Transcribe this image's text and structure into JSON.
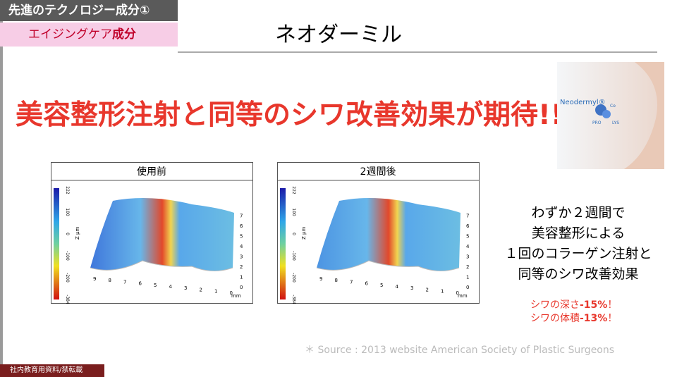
{
  "header": {
    "tag": "先進のテクノロジー成分①",
    "subtag": "エイジングケア",
    "subtag_em": "成分",
    "title": "ネオダーミル"
  },
  "headline": "美容整形注射と同等のシワ改善効果が期待!!",
  "product": {
    "brand": "Neodermyl®",
    "labels": [
      "Ce",
      "PRO",
      "LYS"
    ]
  },
  "panels": [
    {
      "title": "使用前",
      "colorbar_ticks": [
        "222",
        "100",
        "0",
        "-100",
        "-200",
        "-384"
      ],
      "z_label": "Z µm",
      "x_ticks": [
        "9",
        "8",
        "7",
        "6",
        "5",
        "4",
        "3",
        "2",
        "1",
        "0"
      ],
      "x_unit": "mm",
      "y_ticks": [
        "0",
        "1",
        "2",
        "3",
        "4",
        "5",
        "6",
        "7"
      ]
    },
    {
      "title": "2週間後",
      "colorbar_ticks": [
        "222",
        "100",
        "0",
        "-100",
        "-200",
        "-384"
      ],
      "z_label": "Z µm",
      "x_ticks": [
        "9",
        "8",
        "7",
        "6",
        "5",
        "4",
        "3",
        "2",
        "1",
        "0"
      ],
      "x_unit": "mm",
      "y_ticks": [
        "0",
        "1",
        "2",
        "3",
        "4",
        "5",
        "6",
        "7"
      ]
    }
  ],
  "summary": [
    "わずか２週間で",
    "美容整形による",
    "１回のコラーゲン注射と",
    "同等のシワ改善効果"
  ],
  "results": [
    {
      "label": "シワの深さ",
      "value": "-15%",
      "mark": "！"
    },
    {
      "label": "シワの体積",
      "value": "-13%",
      "mark": "！"
    }
  ],
  "source": "＊ Source : 2013 website American Society of Plastic Surgeons",
  "footer": "社内教育用資料/禁転載"
}
